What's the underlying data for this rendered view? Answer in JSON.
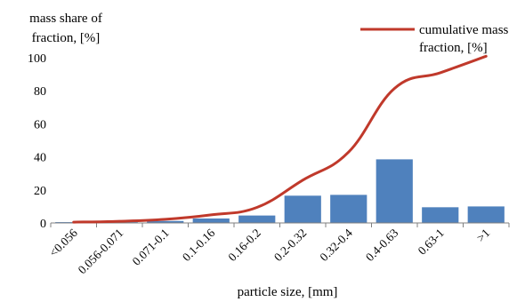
{
  "chart_data": {
    "type": "bar",
    "ylabel_lines": [
      "mass share of",
      "fraction, [%]"
    ],
    "xlabel": "particle size, [mm]",
    "categories": [
      "<0.056",
      "0.056-0.071",
      "0.071-0.1",
      "0.1-0.16",
      "0.16-0.2",
      "0.2-0.32",
      "0.32-0.4",
      "0.4-0.63",
      "0.63-1",
      ">1"
    ],
    "ylim": [
      0,
      100
    ],
    "yticks": [
      0,
      20,
      40,
      60,
      80,
      100
    ],
    "grid": false,
    "legend_position": "top-right",
    "series": [
      {
        "type": "bar",
        "color": "#4f81bd",
        "values": [
          0.5,
          0.5,
          1.2,
          2.7,
          4.5,
          16.5,
          17,
          38.5,
          9.5,
          10
        ]
      },
      {
        "type": "line",
        "name_lines": [
          "cumulative mass",
          "fraction, [%]"
        ],
        "color": "#c0392b",
        "values": [
          0.5,
          1,
          2.2,
          4.9,
          9.4,
          25.9,
          42.9,
          81.4,
          90.9,
          100.9
        ]
      }
    ]
  }
}
